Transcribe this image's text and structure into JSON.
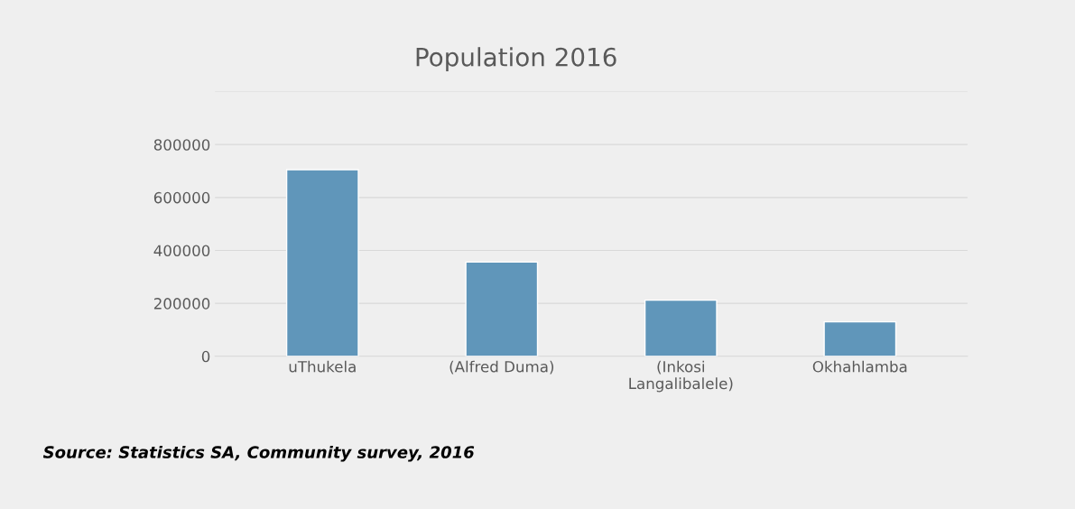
{
  "chart_data": {
    "type": "bar",
    "title": "Population 2016",
    "categories": [
      "uThukela",
      "(Alfred Duma)",
      "(Inkosi\nLangalibalele)",
      "Okhahlamba"
    ],
    "values": [
      705000,
      356000,
      212000,
      130000
    ],
    "color": "#6096ba",
    "ylim": [
      0,
      1000000
    ],
    "yticks": [
      0,
      200000,
      400000,
      600000,
      800000,
      {
        "value": 1000000,
        "label": null
      }
    ],
    "grid": "y",
    "annotations": [
      "Source: Statistics SA, Community survey, 2016"
    ]
  }
}
